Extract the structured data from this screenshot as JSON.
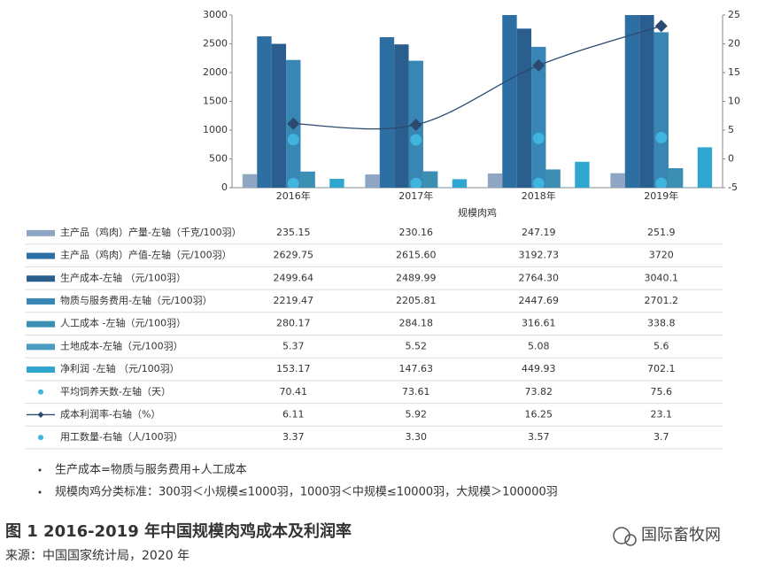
{
  "chart_data": {
    "type": "bar",
    "categories": [
      "2016年",
      "2017年",
      "2018年",
      "2019年"
    ],
    "x_label": "规模肉鸡",
    "ylim": [
      0,
      3000
    ],
    "yticks": [
      0,
      500,
      1000,
      1500,
      2000,
      2500,
      3000
    ],
    "y2lim": [
      -5,
      25
    ],
    "y2ticks": [
      -5,
      0,
      5,
      10,
      15,
      20,
      25
    ],
    "series": [
      {
        "name": "主产品（鸡肉）产量-左轴（千克/100羽）",
        "type": "bar",
        "color": "#8ea6c4",
        "values": [
          235.15,
          230.16,
          247.19,
          251.9
        ]
      },
      {
        "name": "主产品（鸡肉）产值-左轴（元/100羽）",
        "type": "bar",
        "color": "#2d6fa3",
        "values": [
          2629.75,
          2615.6,
          3192.73,
          3720
        ],
        "value_labels": [
          "2629.75",
          "2615.60",
          "3192.73",
          "3720"
        ]
      },
      {
        "name": "生产成本-左轴  （元/100羽）",
        "type": "bar",
        "color": "#2a5e8e",
        "values": [
          2499.64,
          2489.99,
          2764.3,
          3040.1
        ],
        "value_labels": [
          "2499.64",
          "2489.99",
          "2764.30",
          "3040.1"
        ]
      },
      {
        "name": "物质与服务费用-左轴（元/100羽）",
        "type": "bar",
        "color": "#3886b4",
        "values": [
          2219.47,
          2205.81,
          2447.69,
          2701.2
        ]
      },
      {
        "name": "人工成本 -左轴（元/100羽）",
        "type": "bar",
        "color": "#3b8fb3",
        "values": [
          280.17,
          284.18,
          316.61,
          338.8
        ]
      },
      {
        "name": "土地成本-左轴（元/100羽）",
        "type": "bar",
        "color": "#4a9dc0",
        "values": [
          5.37,
          5.52,
          5.08,
          5.6
        ]
      },
      {
        "name": "净利润 -左轴  （元/100羽）",
        "type": "bar",
        "color": "#2fa6cf",
        "values": [
          153.17,
          147.63,
          449.93,
          702.1
        ]
      },
      {
        "name": "平均饲养天数-左轴（天）",
        "type": "scatter",
        "color": "#3fb4de",
        "values": [
          70.41,
          73.61,
          73.82,
          75.6
        ]
      },
      {
        "name": "成本利润率-右轴（%）",
        "type": "line",
        "axis": "y2",
        "color": "#2c4a70",
        "values": [
          6.11,
          5.92,
          16.25,
          23.1
        ]
      },
      {
        "name": "用工数量-右轴（人/100羽）",
        "type": "scatter",
        "axis": "y2",
        "color": "#3fb4de",
        "values": [
          3.37,
          3.3,
          3.57,
          3.7
        ],
        "value_labels": [
          "3.37",
          "3.30",
          "3.57",
          "3.7"
        ]
      }
    ],
    "notes": [
      "生产成本=物质与服务费用+人工成本",
      "规模肉鸡分类标准：300羽＜小规模≤1000羽，1000羽＜中规模≤10000羽，大规模＞100000羽"
    ],
    "caption": "图 1 2016-2019 年中国规模肉鸡成本及利润率",
    "source": "来源：中国国家统计局，2020 年",
    "watermark": "国际畜牧网"
  }
}
